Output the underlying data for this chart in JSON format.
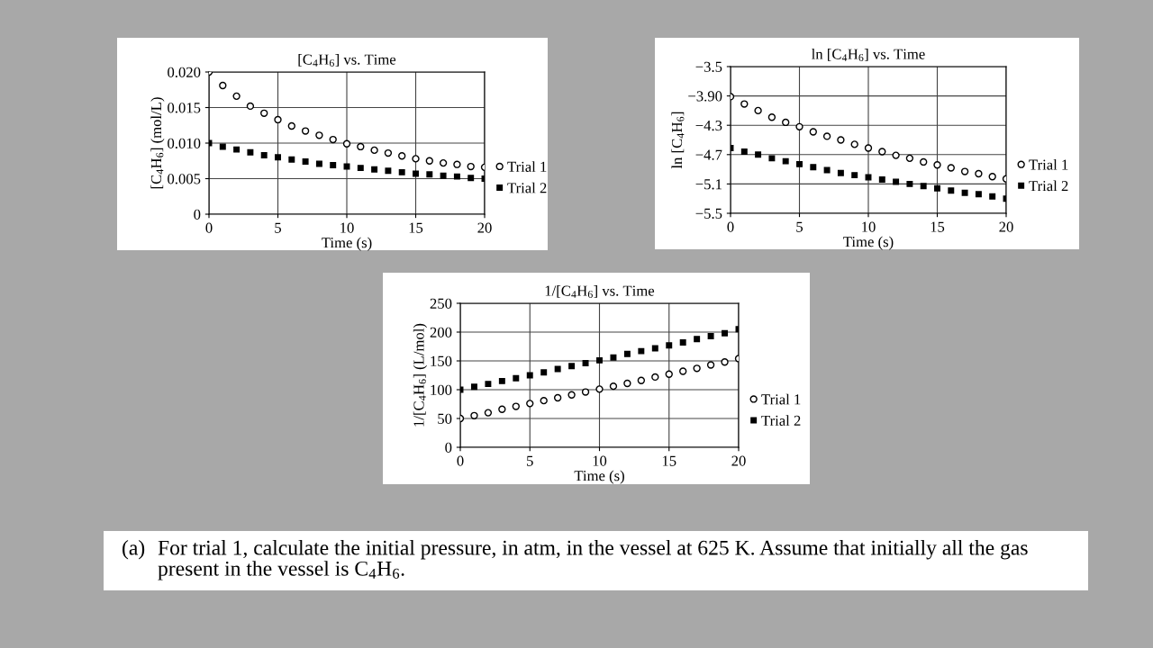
{
  "chart_data": [
    {
      "type": "scatter",
      "title": "[C$_{4}$H$_{6}$] vs. Time",
      "xlabel": "Time (s)",
      "ylabel": "[C$_{4}$H$_{6}$] (mol/L)",
      "x": [
        0,
        1,
        2,
        3,
        4,
        5,
        6,
        7,
        8,
        9,
        10,
        11,
        12,
        13,
        14,
        15,
        16,
        17,
        18,
        19,
        20
      ],
      "xlim": [
        0,
        20
      ],
      "xticks": [
        0,
        5,
        10,
        15,
        20
      ],
      "ylim": [
        0,
        0.02
      ],
      "yticks": [
        0,
        0.005,
        {
          "value": 0.01,
          "label": "0.010"
        },
        0.015,
        {
          "value": 0.02,
          "label": "0.020"
        }
      ],
      "grid": true,
      "legend": "right",
      "series": [
        {
          "name": "Trial 1",
          "color": "#000000",
          "marker": "circle",
          "values": [
            0.02,
            0.0181,
            0.0166,
            0.0152,
            0.0142,
            0.0133,
            0.0124,
            0.0117,
            0.0111,
            0.0105,
            0.0099,
            0.0095,
            0.009,
            0.0086,
            0.0082,
            0.0078,
            0.0075,
            0.0072,
            0.007,
            0.0067,
            0.0066
          ]
        },
        {
          "name": "Trial 2",
          "color": "#000000",
          "marker": "square",
          "values": [
            0.01,
            0.0095,
            0.0091,
            0.0087,
            0.0083,
            0.008,
            0.0077,
            0.0074,
            0.0071,
            0.0069,
            0.0067,
            0.0065,
            0.0063,
            0.0061,
            0.0059,
            0.0057,
            0.0056,
            0.0054,
            0.0053,
            0.0051,
            0.005
          ]
        }
      ]
    },
    {
      "type": "scatter",
      "title": "ln [C$_{4}$H$_{6}$] vs. Time",
      "xlabel": "Time (s)",
      "ylabel": "ln [C$_{4}$H$_{6}$]",
      "x": [
        0,
        1,
        2,
        3,
        4,
        5,
        6,
        7,
        8,
        9,
        10,
        11,
        12,
        13,
        14,
        15,
        16,
        17,
        18,
        19,
        20
      ],
      "xlim": [
        0,
        20
      ],
      "xticks": [
        0,
        5,
        10,
        15,
        20
      ],
      "ylim": [
        -5.5,
        -3.5
      ],
      "yticks": [
        {
          "value": -5.5,
          "label": "−5.5"
        },
        {
          "value": -5.1,
          "label": "−5.1"
        },
        {
          "value": -4.7,
          "label": "−4.7"
        },
        {
          "value": -4.3,
          "label": "−4.3"
        },
        {
          "value": -3.9,
          "label": "−3.90"
        },
        {
          "value": -3.5,
          "label": "−3.5"
        }
      ],
      "grid": true,
      "legend": "right",
      "series": [
        {
          "name": "Trial 1",
          "color": "#000000",
          "marker": "circle",
          "values": [
            -3.91,
            -4.01,
            -4.1,
            -4.19,
            -4.26,
            -4.32,
            -4.39,
            -4.45,
            -4.5,
            -4.56,
            -4.61,
            -4.66,
            -4.71,
            -4.75,
            -4.8,
            -4.84,
            -4.88,
            -4.93,
            -4.96,
            -5.0,
            -5.03
          ]
        },
        {
          "name": "Trial 2",
          "color": "#000000",
          "marker": "square",
          "values": [
            -4.61,
            -4.66,
            -4.7,
            -4.75,
            -4.79,
            -4.83,
            -4.87,
            -4.91,
            -4.95,
            -4.98,
            -5.01,
            -5.04,
            -5.07,
            -5.1,
            -5.13,
            -5.16,
            -5.19,
            -5.22,
            -5.24,
            -5.27,
            -5.3
          ]
        }
      ]
    },
    {
      "type": "scatter",
      "title": "1/[C$_{4}$H$_{6}$] vs. Time",
      "xlabel": "Time (s)",
      "ylabel": "1/[C$_{4}$H$_{6}$] (L/mol)",
      "x": [
        0,
        1,
        2,
        3,
        4,
        5,
        6,
        7,
        8,
        9,
        10,
        11,
        12,
        13,
        14,
        15,
        16,
        17,
        18,
        19,
        20
      ],
      "xlim": [
        0,
        20
      ],
      "xticks": [
        0,
        5,
        10,
        15,
        20
      ],
      "ylim": [
        0,
        250
      ],
      "yticks": [
        0,
        50,
        100,
        150,
        200,
        250
      ],
      "grid": true,
      "legend": "right",
      "series": [
        {
          "name": "Trial 1",
          "color": "#000000",
          "marker": "circle",
          "values": [
            50,
            55,
            60,
            66,
            71,
            76,
            81,
            86,
            91,
            96,
            101,
            106,
            111,
            116,
            122,
            127,
            132,
            137,
            143,
            148,
            154
          ]
        },
        {
          "name": "Trial 2",
          "color": "#000000",
          "marker": "square",
          "values": [
            100,
            105,
            110,
            115,
            120,
            125,
            130,
            136,
            141,
            146,
            151,
            156,
            162,
            167,
            172,
            177,
            182,
            188,
            193,
            198,
            205
          ]
        }
      ]
    },
    {
      "type": "other",
      "annotations": [
        "(a)",
        "For trial 1, calculate the initial pressure, in atm, in the vessel at 625 K. Assume that initially all the gas\npresent in the vessel is C$_{4}$H$_{6}$."
      ]
    }
  ]
}
